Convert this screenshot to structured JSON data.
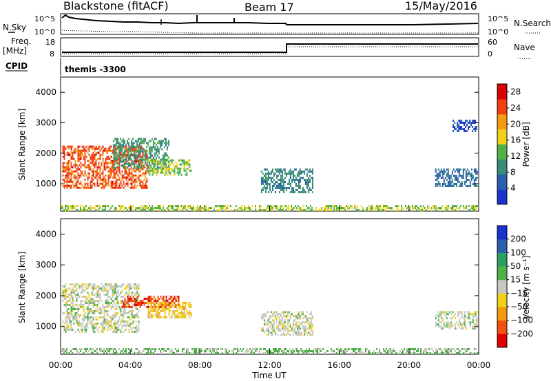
{
  "header": {
    "radar": "Blackstone (fitACF)",
    "beam": "Beam 17",
    "date": "15/May/2016"
  },
  "panels": {
    "sky": {
      "left_label": "N.Sky",
      "right_label": "N.Search",
      "left_ticks": [
        "10^5",
        "10^0"
      ],
      "right_ticks": [
        "10^5",
        "10^0"
      ]
    },
    "freq": {
      "left_label_1": "Freq.",
      "left_label_2": "[MHz]",
      "right_label": "Nave",
      "left_ticks": [
        "18",
        "8"
      ],
      "right_ticks": [
        "60",
        "0"
      ]
    },
    "cpid": {
      "label": "CPID",
      "text": "themis -3300"
    }
  },
  "chart_data": [
    {
      "type": "heatmap",
      "name": "power",
      "ylabel": "Slant Range [km]",
      "colorbar_label": "Power [dB]",
      "colorbar_ticks": [
        "4",
        "8",
        "12",
        "16",
        "20",
        "24",
        "28"
      ],
      "colorbar_range": [
        0,
        30
      ],
      "colors": [
        "#1a33cc",
        "#2a5fb0",
        "#3a8a7a",
        "#52b048",
        "#f0d21a",
        "#f59a12",
        "#f04010",
        "#d80000"
      ],
      "ylim": [
        100,
        4500
      ],
      "yticks": [
        "1000",
        "2000",
        "3000",
        "4000"
      ],
      "regions": [
        {
          "t0": 0.1,
          "t1": 5.0,
          "r0": 850,
          "r1": 2250,
          "power": 24
        },
        {
          "t0": 3.0,
          "t1": 6.2,
          "r0": 1500,
          "r1": 2500,
          "power": 10
        },
        {
          "t0": 5.0,
          "t1": 7.5,
          "r0": 1300,
          "r1": 1800,
          "power": 14
        },
        {
          "t0": 11.5,
          "t1": 14.5,
          "r0": 700,
          "r1": 1500,
          "power": 9
        },
        {
          "t0": 21.5,
          "t1": 23.9,
          "r0": 900,
          "r1": 1500,
          "power": 7
        },
        {
          "t0": 22.5,
          "t1": 23.9,
          "r0": 2700,
          "r1": 3100,
          "power": 4
        },
        {
          "t0": 0.0,
          "t1": 24.0,
          "r0": 150,
          "r1": 300,
          "power": 15
        }
      ]
    },
    {
      "type": "heatmap",
      "name": "velocity",
      "ylabel": "Slant Range [km]",
      "xlabel": "Time UT",
      "colorbar_label": "Velocity [m s⁻¹]",
      "colorbar_ticks": [
        "200",
        "100",
        "50",
        "15",
        "−15",
        "−50",
        "−100",
        "−200"
      ],
      "colorbar_range": [
        -250,
        250
      ],
      "colors": [
        "#e00000",
        "#f05010",
        "#f59a12",
        "#f0d21a",
        "#c8c8c0",
        "#52b048",
        "#2aa060",
        "#2a5fb0",
        "#1a33cc"
      ],
      "ylim": [
        100,
        4500
      ],
      "yticks": [
        "1000",
        "2000",
        "3000",
        "4000"
      ],
      "xticks": [
        "00:00",
        "04:00",
        "08:00",
        "12:00",
        "16:00",
        "20:00",
        "00:00"
      ],
      "xlim": [
        0,
        24
      ],
      "regions": [
        {
          "t0": 0.1,
          "t1": 4.5,
          "r0": 850,
          "r1": 2400,
          "velocity": 0
        },
        {
          "t0": 3.5,
          "t1": 6.8,
          "r0": 1600,
          "r1": 2000,
          "velocity": -180
        },
        {
          "t0": 5.0,
          "t1": 7.5,
          "r0": 1300,
          "r1": 1800,
          "velocity": -60
        },
        {
          "t0": 11.5,
          "t1": 14.5,
          "r0": 700,
          "r1": 1500,
          "velocity": 0
        },
        {
          "t0": 21.5,
          "t1": 23.9,
          "r0": 900,
          "r1": 1500,
          "velocity": 5
        },
        {
          "t0": 0.0,
          "t1": 24.0,
          "r0": 150,
          "r1": 300,
          "velocity": 30
        }
      ]
    }
  ]
}
